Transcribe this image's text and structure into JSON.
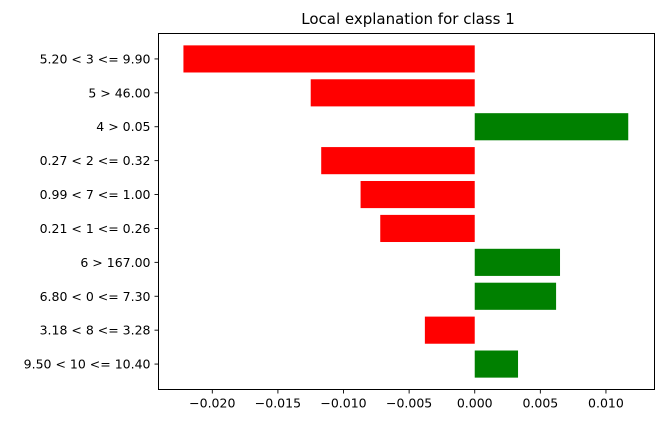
{
  "chart_data": {
    "type": "bar",
    "orientation": "horizontal",
    "title": "Local explanation for class 1",
    "xlabel": "",
    "ylabel": "",
    "categories": [
      "5.20 < 3 <= 9.90",
      "5 > 46.00",
      "4 > 0.05",
      "0.27 < 2 <= 0.32",
      "0.99 < 7 <= 1.00",
      "0.21 < 1 <= 0.26",
      "6 > 167.00",
      "6.80 < 0 <= 7.30",
      "3.18 < 8 <= 3.28",
      "9.50 < 10 <= 10.40"
    ],
    "values": [
      -0.0222,
      -0.0125,
      0.0117,
      -0.0117,
      -0.0087,
      -0.0072,
      0.0065,
      0.0062,
      -0.0038,
      0.0033
    ],
    "xlim": [
      -0.0241,
      0.0137
    ],
    "xticks": [
      -0.02,
      -0.015,
      -0.01,
      -0.005,
      0.0,
      0.005,
      0.01
    ],
    "xtick_labels": [
      "−0.020",
      "−0.015",
      "−0.010",
      "−0.005",
      "0.000",
      "0.005",
      "0.010"
    ],
    "grid": false,
    "legend": "none",
    "colors": {
      "positive": "#008000",
      "negative": "#ff0000"
    }
  }
}
